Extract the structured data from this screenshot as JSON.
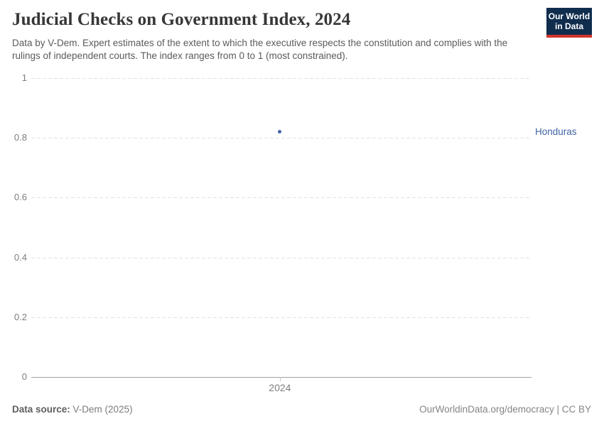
{
  "header": {
    "title": "Judicial Checks on Government Index, 2024",
    "subtitle": "Data by V-Dem. Expert estimates of the extent to which the executive respects the constitution and complies with the rulings of independent courts. The index ranges from 0 to 1 (most constrained).",
    "logo": {
      "line1": "Our World",
      "line2": "in Data",
      "bg_color": "#102d4e",
      "accent_color": "#d0342c"
    }
  },
  "chart_data": {
    "type": "scatter",
    "title": "Judicial Checks on Government Index, 2024",
    "x": [
      2024
    ],
    "series": [
      {
        "name": "Honduras",
        "values": [
          0.82
        ],
        "color": "#4264a3"
      }
    ],
    "xlabel": "",
    "ylabel": "",
    "ylim": [
      0,
      1
    ],
    "yticks": [
      0,
      0.2,
      0.4,
      0.6,
      0.8,
      1
    ],
    "ytick_labels": [
      "0",
      "0.2",
      "0.4",
      "0.6",
      "0.8",
      "1"
    ],
    "xticks": [
      2024
    ],
    "xtick_labels": [
      "2024"
    ],
    "grid": "horizontal-dashed",
    "legend": "entity-label-right-of-point"
  },
  "footer": {
    "source_label": "Data source:",
    "source_value": "V-Dem (2025)",
    "right": "OurWorldinData.org/democracy | CC BY"
  },
  "colors": {
    "series_blue": "#4264a3",
    "grid": "#e2e2e2",
    "axis": "#a3a3a3",
    "tick_text": "#7d7d7d"
  }
}
